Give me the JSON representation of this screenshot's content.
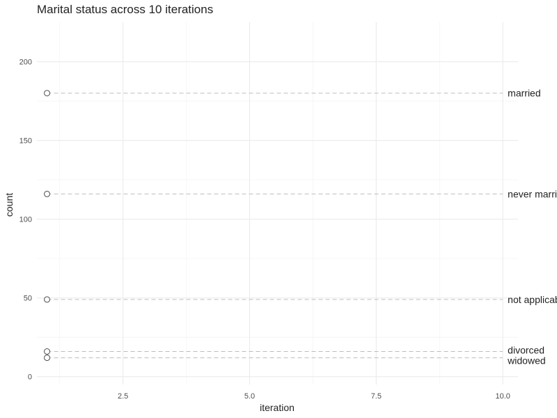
{
  "chart_data": {
    "type": "scatter",
    "title": "Marital status across 10 iterations",
    "xlabel": "iteration",
    "ylabel": "count",
    "xlim": [
      0.8,
      10.3
    ],
    "ylim": [
      -5,
      225
    ],
    "x_ticks": [
      2.5,
      5.0,
      7.5,
      10.0
    ],
    "x_tick_labels": [
      "2.5",
      "5.0",
      "7.5",
      "10.0"
    ],
    "y_ticks": [
      0,
      50,
      100,
      150,
      200
    ],
    "y_tick_labels": [
      "0",
      "50",
      "100",
      "150",
      "200"
    ],
    "grid": true,
    "legend": "none",
    "series": [
      {
        "name": "married",
        "x": [
          1
        ],
        "y": [
          180
        ],
        "reference_line": {
          "from_x": 1,
          "to_x": 10,
          "y": 180
        }
      },
      {
        "name": "never married",
        "x": [
          1
        ],
        "y": [
          116
        ],
        "reference_line": {
          "from_x": 1,
          "to_x": 10,
          "y": 116
        }
      },
      {
        "name": "not applicable",
        "x": [
          1
        ],
        "y": [
          49
        ],
        "reference_line": {
          "from_x": 1,
          "to_x": 10,
          "y": 49
        }
      },
      {
        "name": "divorced",
        "x": [
          1
        ],
        "y": [
          16
        ],
        "reference_line": {
          "from_x": 1,
          "to_x": 10,
          "y": 16
        }
      },
      {
        "name": "widowed",
        "x": [
          1
        ],
        "y": [
          12
        ],
        "reference_line": {
          "from_x": 1,
          "to_x": 10,
          "y": 12
        }
      }
    ]
  }
}
